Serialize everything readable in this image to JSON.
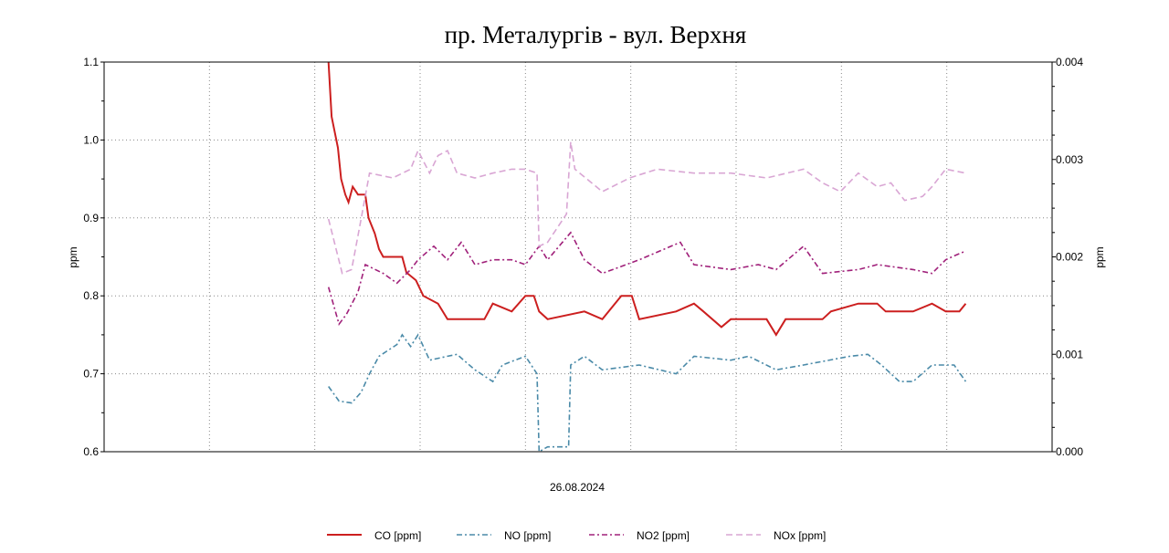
{
  "chart_data": {
    "type": "line",
    "title": "пр. Металургів - вул. Верхня",
    "xlabel": "26.08.2024",
    "ylabel": "ppm",
    "y2label": "ppm",
    "xlim": [
      0,
      9
    ],
    "ylim": [
      0.6,
      1.1
    ],
    "y2lim": [
      0.0,
      0.004
    ],
    "yticks": [
      "0.6",
      "0.7",
      "0.8",
      "0.9",
      "1.0",
      "1.1"
    ],
    "y2ticks": [
      "0.000",
      "0.001",
      "0.002",
      "0.003",
      "0.004"
    ],
    "grid": true,
    "legend_position": "bottom",
    "series": [
      {
        "name": "CO [ppm]",
        "axis": "left",
        "color": "#cc1f1f",
        "style": "solid",
        "points": [
          [
            2.13,
            1.1
          ],
          [
            2.16,
            1.03
          ],
          [
            2.22,
            0.99
          ],
          [
            2.25,
            0.95
          ],
          [
            2.29,
            0.93
          ],
          [
            2.32,
            0.92
          ],
          [
            2.36,
            0.94
          ],
          [
            2.41,
            0.93
          ],
          [
            2.48,
            0.93
          ],
          [
            2.51,
            0.9
          ],
          [
            2.57,
            0.88
          ],
          [
            2.61,
            0.86
          ],
          [
            2.65,
            0.85
          ],
          [
            2.83,
            0.85
          ],
          [
            2.87,
            0.83
          ],
          [
            2.96,
            0.82
          ],
          [
            3.03,
            0.8
          ],
          [
            3.17,
            0.79
          ],
          [
            3.26,
            0.77
          ],
          [
            3.61,
            0.77
          ],
          [
            3.69,
            0.79
          ],
          [
            3.87,
            0.78
          ],
          [
            4.0,
            0.8
          ],
          [
            4.08,
            0.8
          ],
          [
            4.13,
            0.78
          ],
          [
            4.21,
            0.77
          ],
          [
            4.56,
            0.78
          ],
          [
            4.73,
            0.77
          ],
          [
            4.91,
            0.8
          ],
          [
            5.01,
            0.8
          ],
          [
            5.08,
            0.77
          ],
          [
            5.43,
            0.78
          ],
          [
            5.6,
            0.79
          ],
          [
            5.69,
            0.78
          ],
          [
            5.86,
            0.76
          ],
          [
            5.95,
            0.77
          ],
          [
            6.29,
            0.77
          ],
          [
            6.38,
            0.75
          ],
          [
            6.47,
            0.77
          ],
          [
            6.82,
            0.77
          ],
          [
            6.9,
            0.78
          ],
          [
            7.16,
            0.79
          ],
          [
            7.34,
            0.79
          ],
          [
            7.42,
            0.78
          ],
          [
            7.68,
            0.78
          ],
          [
            7.86,
            0.79
          ],
          [
            7.99,
            0.78
          ],
          [
            8.12,
            0.78
          ],
          [
            8.18,
            0.79
          ]
        ]
      },
      {
        "name": "NO [ppm]",
        "axis": "right",
        "color": "#4a8aa8",
        "style": "dashdot",
        "points": [
          [
            2.13,
            0.00067
          ],
          [
            2.23,
            0.00052
          ],
          [
            2.35,
            0.0005
          ],
          [
            2.44,
            0.00061
          ],
          [
            2.52,
            0.0008
          ],
          [
            2.61,
            0.00098
          ],
          [
            2.78,
            0.0011
          ],
          [
            2.83,
            0.0012
          ],
          [
            2.91,
            0.00108
          ],
          [
            2.98,
            0.0012
          ],
          [
            3.09,
            0.00094
          ],
          [
            3.26,
            0.00098
          ],
          [
            3.35,
            0.001
          ],
          [
            3.52,
            0.00084
          ],
          [
            3.69,
            0.00072
          ],
          [
            3.78,
            0.00089
          ],
          [
            4.0,
            0.00098
          ],
          [
            4.11,
            0.0008
          ],
          [
            4.13,
            0.0
          ],
          [
            4.21,
            5e-05
          ],
          [
            4.41,
            5e-05
          ],
          [
            4.43,
            0.00089
          ],
          [
            4.56,
            0.00098
          ],
          [
            4.73,
            0.00084
          ],
          [
            5.08,
            0.00089
          ],
          [
            5.43,
            0.0008
          ],
          [
            5.6,
            0.00098
          ],
          [
            5.95,
            0.00094
          ],
          [
            6.12,
            0.00098
          ],
          [
            6.38,
            0.00084
          ],
          [
            6.64,
            0.00089
          ],
          [
            7.08,
            0.00098
          ],
          [
            7.25,
            0.001
          ],
          [
            7.38,
            0.00089
          ],
          [
            7.55,
            0.00072
          ],
          [
            7.68,
            0.00072
          ],
          [
            7.86,
            0.00089
          ],
          [
            8.07,
            0.00089
          ],
          [
            8.18,
            0.00072
          ]
        ]
      },
      {
        "name": "NO2 [ppm]",
        "axis": "right",
        "color": "#a0207a",
        "style": "dashdot",
        "points": [
          [
            2.13,
            0.00169
          ],
          [
            2.23,
            0.00131
          ],
          [
            2.3,
            0.00141
          ],
          [
            2.41,
            0.00164
          ],
          [
            2.48,
            0.00192
          ],
          [
            2.65,
            0.00183
          ],
          [
            2.78,
            0.00173
          ],
          [
            2.91,
            0.00187
          ],
          [
            2.98,
            0.00197
          ],
          [
            3.13,
            0.00211
          ],
          [
            3.26,
            0.00197
          ],
          [
            3.39,
            0.00215
          ],
          [
            3.52,
            0.00192
          ],
          [
            3.69,
            0.00197
          ],
          [
            3.87,
            0.00197
          ],
          [
            4.0,
            0.00192
          ],
          [
            4.13,
            0.00211
          ],
          [
            4.21,
            0.00197
          ],
          [
            4.43,
            0.00225
          ],
          [
            4.56,
            0.00197
          ],
          [
            4.73,
            0.00183
          ],
          [
            5.08,
            0.00197
          ],
          [
            5.47,
            0.00215
          ],
          [
            5.6,
            0.00192
          ],
          [
            5.95,
            0.00187
          ],
          [
            6.21,
            0.00192
          ],
          [
            6.38,
            0.00187
          ],
          [
            6.64,
            0.00211
          ],
          [
            6.82,
            0.00183
          ],
          [
            7.16,
            0.00187
          ],
          [
            7.34,
            0.00192
          ],
          [
            7.68,
            0.00187
          ],
          [
            7.86,
            0.00183
          ],
          [
            7.99,
            0.00197
          ],
          [
            8.07,
            0.00201
          ],
          [
            8.18,
            0.00206
          ]
        ]
      },
      {
        "name": "NOx [ppm]",
        "axis": "right",
        "color": "#d9a6d4",
        "style": "dashed",
        "points": [
          [
            2.13,
            0.00239
          ],
          [
            2.26,
            0.00183
          ],
          [
            2.35,
            0.00187
          ],
          [
            2.44,
            0.00239
          ],
          [
            2.52,
            0.00286
          ],
          [
            2.74,
            0.00281
          ],
          [
            2.91,
            0.0029
          ],
          [
            2.98,
            0.00309
          ],
          [
            3.09,
            0.00286
          ],
          [
            3.17,
            0.00304
          ],
          [
            3.26,
            0.00309
          ],
          [
            3.35,
            0.00286
          ],
          [
            3.52,
            0.00281
          ],
          [
            3.69,
            0.00286
          ],
          [
            3.87,
            0.0029
          ],
          [
            4.0,
            0.0029
          ],
          [
            4.11,
            0.00286
          ],
          [
            4.13,
            0.00211
          ],
          [
            4.21,
            0.00215
          ],
          [
            4.39,
            0.00244
          ],
          [
            4.43,
            0.00318
          ],
          [
            4.47,
            0.0029
          ],
          [
            4.73,
            0.00267
          ],
          [
            4.99,
            0.00281
          ],
          [
            5.25,
            0.0029
          ],
          [
            5.6,
            0.00286
          ],
          [
            5.95,
            0.00286
          ],
          [
            6.29,
            0.00281
          ],
          [
            6.64,
            0.0029
          ],
          [
            6.82,
            0.00276
          ],
          [
            6.99,
            0.00267
          ],
          [
            7.16,
            0.00286
          ],
          [
            7.34,
            0.00272
          ],
          [
            7.47,
            0.00276
          ],
          [
            7.6,
            0.00258
          ],
          [
            7.77,
            0.00262
          ],
          [
            7.86,
            0.00272
          ],
          [
            7.99,
            0.0029
          ],
          [
            8.18,
            0.00286
          ]
        ]
      }
    ]
  }
}
